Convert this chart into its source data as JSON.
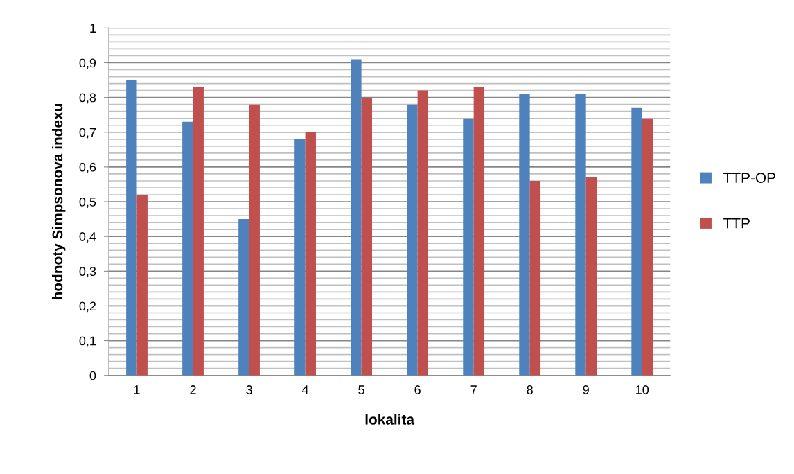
{
  "chart_data": {
    "type": "bar",
    "xlabel": "lokalita",
    "ylabel": "hodnoty Simpsonova indexu",
    "categories": [
      "1",
      "2",
      "3",
      "4",
      "5",
      "6",
      "7",
      "8",
      "9",
      "10"
    ],
    "series": [
      {
        "name": "TTP-OP",
        "color": "#4f81bd",
        "values": [
          0.85,
          0.73,
          0.45,
          0.68,
          0.91,
          0.78,
          0.74,
          0.81,
          0.81,
          0.77
        ]
      },
      {
        "name": "TTP",
        "color": "#c0504d",
        "values": [
          0.52,
          0.83,
          0.78,
          0.7,
          0.8,
          0.82,
          0.83,
          0.56,
          0.57,
          0.74
        ]
      }
    ],
    "ylim": [
      0,
      1
    ],
    "yticks": [
      {
        "value": 0,
        "label": "0"
      },
      {
        "value": 0.02,
        "label": null
      },
      {
        "value": 0.04,
        "label": null
      },
      {
        "value": 0.06,
        "label": null
      },
      {
        "value": 0.08,
        "label": null
      },
      {
        "value": 0.1,
        "label": "0,1"
      },
      {
        "value": 0.12,
        "label": null
      },
      {
        "value": 0.14,
        "label": null
      },
      {
        "value": 0.16,
        "label": null
      },
      {
        "value": 0.18,
        "label": null
      },
      {
        "value": 0.2,
        "label": "0,2"
      },
      {
        "value": 0.22,
        "label": null
      },
      {
        "value": 0.24,
        "label": null
      },
      {
        "value": 0.26,
        "label": null
      },
      {
        "value": 0.28,
        "label": null
      },
      {
        "value": 0.3,
        "label": "0,3"
      },
      {
        "value": 0.32,
        "label": null
      },
      {
        "value": 0.34,
        "label": null
      },
      {
        "value": 0.36,
        "label": null
      },
      {
        "value": 0.38,
        "label": null
      },
      {
        "value": 0.4,
        "label": "0,4"
      },
      {
        "value": 0.42,
        "label": null
      },
      {
        "value": 0.44,
        "label": null
      },
      {
        "value": 0.46,
        "label": null
      },
      {
        "value": 0.48,
        "label": null
      },
      {
        "value": 0.5,
        "label": "0,5"
      },
      {
        "value": 0.52,
        "label": null
      },
      {
        "value": 0.54,
        "label": null
      },
      {
        "value": 0.56,
        "label": null
      },
      {
        "value": 0.58,
        "label": null
      },
      {
        "value": 0.6,
        "label": "0,6"
      },
      {
        "value": 0.62,
        "label": null
      },
      {
        "value": 0.64,
        "label": null
      },
      {
        "value": 0.66,
        "label": null
      },
      {
        "value": 0.68,
        "label": null
      },
      {
        "value": 0.7,
        "label": "0,7"
      },
      {
        "value": 0.72,
        "label": null
      },
      {
        "value": 0.74,
        "label": null
      },
      {
        "value": 0.76,
        "label": null
      },
      {
        "value": 0.78,
        "label": null
      },
      {
        "value": 0.8,
        "label": "0,8"
      },
      {
        "value": 0.82,
        "label": null
      },
      {
        "value": 0.84,
        "label": null
      },
      {
        "value": 0.86,
        "label": null
      },
      {
        "value": 0.88,
        "label": null
      },
      {
        "value": 0.9,
        "label": "0,9"
      },
      {
        "value": 0.92,
        "label": null
      },
      {
        "value": 0.94,
        "label": null
      },
      {
        "value": 0.96,
        "label": null
      },
      {
        "value": 0.98,
        "label": null
      },
      {
        "value": 1,
        "label": "1"
      }
    ],
    "grid": "y",
    "legend": "right"
  }
}
